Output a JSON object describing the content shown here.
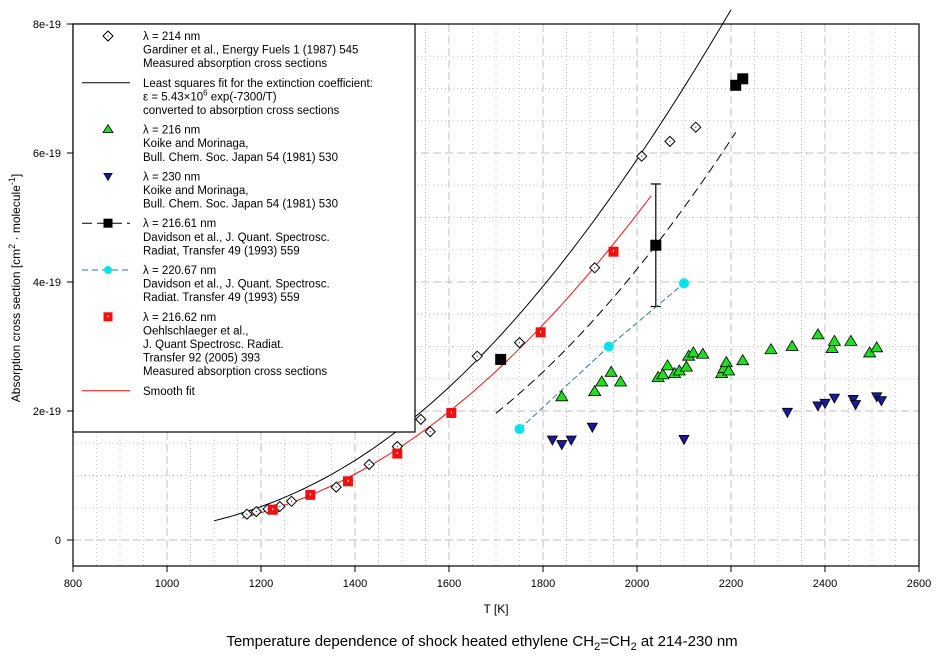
{
  "chart_data": {
    "type": "scatter",
    "caption": "Temperature dependence of shock heated ethylene CH2=CH2 at 214-230 nm",
    "caption_parts": {
      "a": "Temperature dependence of shock heated ethylene CH",
      "sub1": "2",
      "b": "=CH",
      "sub2": "2",
      "c": " at 214-230 nm"
    },
    "xlabel": "T [K]",
    "ylabel_parts": {
      "a": "Absorption cross section [cm",
      "sup1": "2",
      "b": " · molecule",
      "sup2": "-1",
      "c": "]"
    },
    "xlim": [
      800,
      2600
    ],
    "ylim": [
      -0.4,
      8.0
    ],
    "y_scale_note": "values in units of 1e-19",
    "xticks": [
      "800",
      "1000",
      "1200",
      "1400",
      "1600",
      "1800",
      "2000",
      "2200",
      "2400",
      "2600"
    ],
    "xtick_values": [
      800,
      1000,
      1200,
      1400,
      1600,
      1800,
      2000,
      2200,
      2400,
      2600
    ],
    "yticks": [
      "0",
      "2e-19",
      "4e-19",
      "6e-19",
      "8e-19"
    ],
    "ytick_values": [
      0,
      2,
      4,
      6,
      8
    ],
    "grid": true,
    "legend_position": "top-left",
    "series": [
      {
        "name": "gardiner",
        "marker": "diamond-open",
        "color": "#000000",
        "legend": [
          "λ = 214 nm",
          "Gardiner et al., Energy Fuels 1 (1987) 545",
          "Measured absorption cross sections"
        ],
        "x": [
          1170,
          1190,
          1215,
          1230,
          1240,
          1265,
          1360,
          1430,
          1490,
          1540,
          1560,
          1660,
          1750,
          1910,
          2010,
          2070,
          2125
        ],
        "y": [
          0.4,
          0.44,
          0.48,
          0.47,
          0.52,
          0.6,
          0.82,
          1.17,
          1.45,
          1.87,
          1.68,
          2.85,
          3.06,
          4.22,
          5.95,
          6.18,
          6.4
        ]
      },
      {
        "name": "least-squares-fit",
        "line": "solid",
        "color": "#000000",
        "legend": [
          "Least squares fit for the extinction coefficient:",
          "ε = 5.43×10⁶ exp(-7300/T)",
          "converted to absorption cross sections"
        ],
        "fit": {
          "A": 4.76,
          "Ea": 7300,
          "tmin": 1100,
          "tmax": 2200
        }
      },
      {
        "name": "koike-216",
        "marker": "triangle-up",
        "color": "#22dd22",
        "legend": [
          "λ = 216 nm",
          "Koike and Morinaga,",
          "Bull. Chem. Soc. Japan 54 (1981) 530"
        ],
        "x": [
          1840,
          1910,
          1925,
          1945,
          1965,
          2045,
          2055,
          2065,
          2080,
          2090,
          2105,
          2110,
          2120,
          2140,
          2180,
          2185,
          2190,
          2195,
          2225,
          2285,
          2330,
          2385,
          2415,
          2420,
          2455,
          2495,
          2510
        ],
        "y": [
          2.22,
          2.3,
          2.45,
          2.6,
          2.45,
          2.52,
          2.56,
          2.7,
          2.58,
          2.62,
          2.68,
          2.85,
          2.9,
          2.88,
          2.58,
          2.66,
          2.75,
          2.62,
          2.78,
          2.95,
          3.0,
          3.18,
          2.97,
          3.08,
          3.08,
          2.9,
          2.98
        ]
      },
      {
        "name": "koike-230",
        "marker": "triangle-down",
        "color": "#1a1a99",
        "legend": [
          "λ = 230 nm",
          "Koike and Morinaga,",
          "Bull. Chem. Soc. Japan 54 (1981) 530"
        ],
        "x": [
          1820,
          1840,
          1860,
          1905,
          2100,
          2320,
          2385,
          2400,
          2420,
          2460,
          2465,
          2510,
          2520
        ],
        "y": [
          1.55,
          1.48,
          1.55,
          1.75,
          1.56,
          1.98,
          2.08,
          2.12,
          2.2,
          2.18,
          2.1,
          2.22,
          2.16
        ]
      },
      {
        "name": "davidson-216.61",
        "marker": "square",
        "line": "dashed",
        "color": "#000000",
        "legend": [
          "λ = 216.61 nm",
          "Davidson et al., J. Quant. Spectrosc.",
          "Radiat, Transfer 49 (1993) 559"
        ],
        "x": [
          1710,
          2040,
          2210,
          2225
        ],
        "y": [
          2.8,
          4.57,
          7.05,
          7.15
        ],
        "yerr_low": [
          0,
          0.95,
          0,
          0
        ],
        "yerr_high": [
          0,
          0.95,
          0,
          0
        ],
        "curve": {
          "A": 4.1,
          "Ea": 6800,
          "tmin": 1700,
          "tmax": 2215
        }
      },
      {
        "name": "davidson-220.67",
        "marker": "circle",
        "line": "dashed",
        "color": "#00e5ee",
        "line_color": "#2a7f8f",
        "legend": [
          "λ = 220.67 nm",
          "Davidson et al., J. Quant. Spectrosc.",
          "Radiat. Transfer 49 (1993) 559"
        ],
        "x": [
          1750,
          1940,
          2100
        ],
        "y": [
          1.72,
          3.0,
          3.98
        ]
      },
      {
        "name": "oehlschlaeger",
        "marker": "square",
        "color": "#ee1111",
        "legend": [
          "λ = 216.62 nm",
          "Oehlschlaeger et al.,",
          "J. Quant Spectrosc. Radiat.",
          "Transfer 92 (2005) 393",
          "Measured absorption cross sections"
        ],
        "x": [
          1225,
          1305,
          1385,
          1490,
          1605,
          1795,
          1950
        ],
        "y": [
          0.47,
          0.7,
          0.91,
          1.34,
          1.97,
          3.22,
          4.47
        ]
      },
      {
        "name": "smooth-fit",
        "line": "solid",
        "color": "#ee1111",
        "legend": [
          "Smooth fit"
        ],
        "fit": {
          "A": 4.62,
          "Ea": 7450,
          "tmin": 1160,
          "tmax": 2030
        }
      }
    ]
  }
}
